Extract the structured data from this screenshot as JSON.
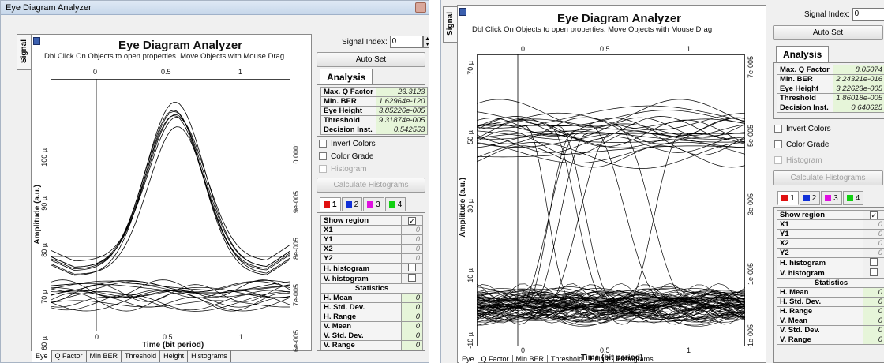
{
  "colors": {
    "trace": "#000000",
    "tab_red": "#e01010",
    "tab_blue": "#1030d8",
    "tab_magenta": "#e010e0",
    "tab_green": "#10d010",
    "value_bg": "#e6f5d9"
  },
  "window": {
    "title": "Eye Diagram Analyzer"
  },
  "side_tab": "Signal",
  "controls": {
    "signal_index_label": "Signal Index:",
    "signal_index_value": "0",
    "auto_set": "Auto Set",
    "invert_colors": "Invert Colors",
    "color_grade": "Color Grade",
    "histogram": "Histogram",
    "calculate_histograms": "Calculate Histograms"
  },
  "analysis": {
    "tab": "Analysis",
    "labels": [
      "Max. Q Factor",
      "Min. BER",
      "Eye Height",
      "Threshold",
      "Decision Inst."
    ]
  },
  "channel_tabs": [
    "1",
    "2",
    "3",
    "4"
  ],
  "region": {
    "show_region": "Show region",
    "show_region_checked": "✓",
    "x1": "X1",
    "y1": "Y1",
    "x2": "X2",
    "y2": "Y2",
    "h_histogram": "H. histogram",
    "v_histogram": "V. histogram",
    "statistics": "Statistics",
    "h_mean": "H. Mean",
    "h_std": "H. Std. Dev.",
    "h_range": "H. Range",
    "v_mean": "V. Mean",
    "v_std": "V. Std. Dev.",
    "v_range": "V. Range",
    "zero": "0"
  },
  "bottom_tabs": [
    "Eye",
    "Q Factor",
    "Min BER",
    "Threshold",
    "Height",
    "Histograms"
  ],
  "plot": {
    "title": "Eye Diagram Analyzer",
    "subtitle": "Dbl Click On Objects to open properties.  Move Objects with Mouse Drag",
    "xlabel": "Time (bit period)",
    "ylabel": "Amplitude (a.u.)",
    "x_ticks": [
      "0",
      "0.5",
      "1"
    ]
  },
  "left": {
    "analysis_values": [
      "23.3123",
      "1.62964e-120",
      "3.85226e-005",
      "9.31874e-005",
      "0.542553"
    ],
    "y_ticks": [
      "100 µ",
      "90 µ",
      "80 µ",
      "70 µ",
      "60 µ"
    ],
    "right_ticks": [
      "0.0001",
      "9e-005",
      "8e-005",
      "7e-005",
      "6e-005"
    ]
  },
  "right": {
    "analysis_values": [
      "8.05074",
      "2.24321e-016",
      "3.22623e-005",
      "1.86018e-005",
      "0.640625"
    ],
    "y_ticks": [
      "70 µ",
      "50 µ",
      "30 µ",
      "10 µ",
      "-10 µ"
    ],
    "right_ticks": [
      "7e-005",
      "5e-005",
      "3e-005",
      "1e-005",
      "-1e-005"
    ]
  }
}
